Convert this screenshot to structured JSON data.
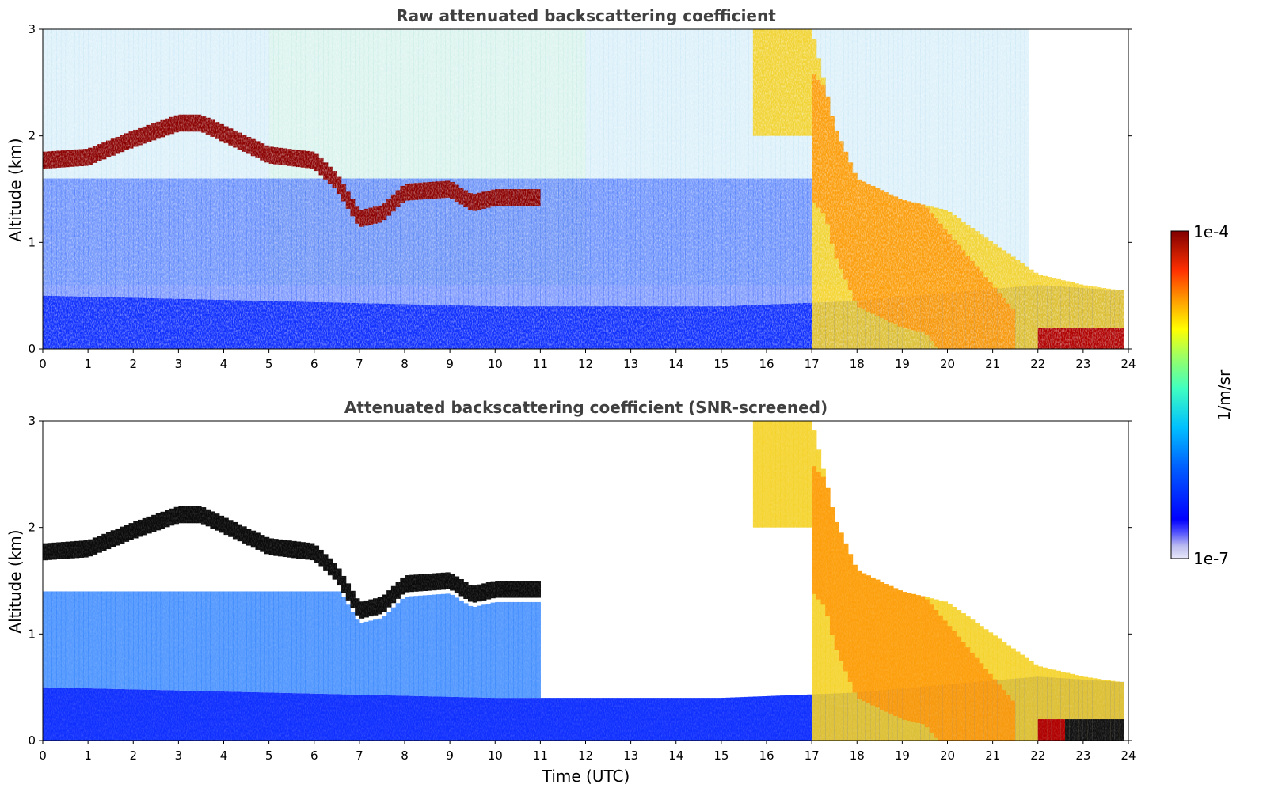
{
  "chart_data": {
    "type": "heatmap",
    "shared": {
      "xlabel": "Time (UTC)",
      "xlim": [
        0,
        24
      ],
      "x_ticks": [
        "0",
        "1",
        "2",
        "3",
        "4",
        "5",
        "6",
        "7",
        "8",
        "9",
        "10",
        "11",
        "12",
        "13",
        "14",
        "15",
        "16",
        "17",
        "18",
        "19",
        "20",
        "21",
        "22",
        "23",
        "24"
      ],
      "colorbar": {
        "label": "1/m/sr",
        "min_label": "1e-7",
        "max_label": "1e-4",
        "scale": "log",
        "colormap": [
          "#e8e8f8",
          "#b8b8f0",
          "#8888ee",
          "#0000ff",
          "#0050ff",
          "#00a0ff",
          "#00e0ff",
          "#40ff c0",
          "#a0ff60",
          "#ffff00",
          "#ffc000",
          "#ff8000",
          "#ff3000",
          "#c00000",
          "#800000"
        ]
      }
    },
    "panels": [
      {
        "title": "Raw attenuated backscattering coefficient",
        "ylabel": "Altitude (km)",
        "ylim": [
          0,
          3
        ],
        "y_ticks": [
          "0",
          "1",
          "2",
          "3"
        ],
        "xlabel": ""
      },
      {
        "title": "Attenuated backscattering coefficient (SNR-screened)",
        "ylabel": "Altitude (km)",
        "ylim": [
          0,
          3
        ],
        "y_ticks": [
          "0",
          "1",
          "2",
          "3"
        ],
        "xlabel": "Time (UTC)"
      }
    ],
    "features": {
      "cloud_layer_top_km": [
        [
          0,
          1.85
        ],
        [
          1,
          1.88
        ],
        [
          2,
          2.05
        ],
        [
          3,
          2.2
        ],
        [
          3.5,
          2.2
        ],
        [
          4,
          2.1
        ],
        [
          5,
          1.9
        ],
        [
          6,
          1.85
        ],
        [
          6.5,
          1.65
        ],
        [
          7,
          1.3
        ],
        [
          7.5,
          1.35
        ],
        [
          8,
          1.55
        ],
        [
          9,
          1.58
        ],
        [
          9.5,
          1.45
        ],
        [
          10,
          1.5
        ],
        [
          11,
          1.5
        ]
      ],
      "precipitating_layer_top_km": [
        [
          15.7,
          3.0
        ],
        [
          17,
          3.0
        ],
        [
          17.5,
          2.1
        ],
        [
          18,
          1.6
        ],
        [
          19,
          1.4
        ],
        [
          20,
          1.3
        ],
        [
          21,
          1.0
        ],
        [
          22,
          0.7
        ],
        [
          23,
          0.6
        ],
        [
          23.8,
          0.55
        ]
      ],
      "boundary_layer_top_km": [
        [
          0,
          0.5
        ],
        [
          5,
          0.45
        ],
        [
          10,
          0.4
        ],
        [
          15,
          0.4
        ],
        [
          18,
          0.45
        ],
        [
          22,
          0.6
        ],
        [
          23.8,
          0.55
        ]
      ]
    }
  }
}
